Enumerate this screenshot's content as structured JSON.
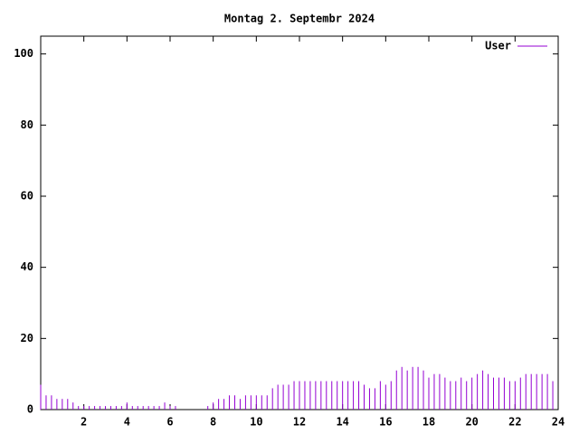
{
  "chart_data": {
    "type": "impulse",
    "title": "Montag 2. Septembr 2024",
    "xlim": [
      0,
      24
    ],
    "xticks": [
      2,
      4,
      6,
      8,
      10,
      12,
      14,
      16,
      18,
      20,
      22,
      24
    ],
    "ylim": [
      0,
      105
    ],
    "yticks": [
      0,
      20,
      40,
      60,
      80,
      100
    ],
    "legend": "top-right",
    "x": [
      0,
      0.25,
      0.5,
      0.75,
      1,
      1.25,
      1.5,
      1.75,
      2,
      2.25,
      2.5,
      2.75,
      3,
      3.25,
      3.5,
      3.75,
      4,
      4.25,
      4.5,
      4.75,
      5,
      5.25,
      5.5,
      5.75,
      6,
      6.25,
      6.5,
      6.75,
      7,
      7.25,
      7.5,
      7.75,
      8,
      8.25,
      8.5,
      8.75,
      9,
      9.25,
      9.5,
      9.75,
      10,
      10.25,
      10.5,
      10.75,
      11,
      11.25,
      11.5,
      11.75,
      12,
      12.25,
      12.5,
      12.75,
      13,
      13.25,
      13.5,
      13.75,
      14,
      14.25,
      14.5,
      14.75,
      15,
      15.25,
      15.5,
      15.75,
      16,
      16.25,
      16.5,
      16.75,
      17,
      17.25,
      17.5,
      17.75,
      18,
      18.25,
      18.5,
      18.75,
      19,
      19.25,
      19.5,
      19.75,
      20,
      20.25,
      20.5,
      20.75,
      21,
      21.25,
      21.5,
      21.75,
      22,
      22.25,
      22.5,
      22.75,
      23,
      23.25,
      23.5,
      23.75
    ],
    "series": [
      {
        "name": "User",
        "color": "#9400d3",
        "values": [
          7,
          4,
          4,
          3,
          3,
          3,
          2,
          1,
          1,
          1,
          1,
          1,
          1,
          1,
          1,
          1,
          2,
          1,
          1,
          1,
          1,
          1,
          1,
          2,
          1,
          1,
          0,
          0,
          0,
          0,
          0,
          1,
          2,
          3,
          3,
          4,
          4,
          3,
          4,
          4,
          4,
          4,
          4,
          6,
          7,
          7,
          7,
          8,
          8,
          8,
          8,
          8,
          8,
          8,
          8,
          8,
          8,
          8,
          8,
          8,
          7,
          6,
          6,
          8,
          7,
          8,
          11,
          12,
          11,
          12,
          12,
          11,
          9,
          10,
          10,
          9,
          8,
          8,
          9,
          8,
          9,
          10,
          11,
          10,
          9,
          9,
          9,
          8,
          8,
          9,
          10,
          10,
          10,
          10,
          10,
          8
        ]
      }
    ]
  }
}
